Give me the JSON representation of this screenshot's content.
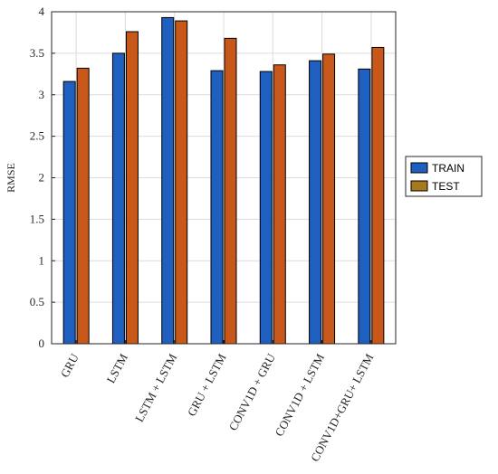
{
  "chart_data": {
    "type": "bar",
    "title": "",
    "xlabel": "",
    "ylabel": "RMSE",
    "ylim": [
      0,
      4
    ],
    "yticks": [
      0,
      0.5,
      1,
      1.5,
      2,
      2.5,
      3,
      3.5,
      4
    ],
    "ytick_labels": [
      "0",
      "0.5",
      "1",
      "1.5",
      "2",
      "2.5",
      "3",
      "3.5",
      "4"
    ],
    "grid": true,
    "legend_position": "outside-right",
    "categories": [
      "GRU",
      "LSTM",
      "LSTM + LSTM",
      "GRU + LSTM",
      "CONV1D + GRU",
      "CONV1D + LSTM",
      "CONV1D+GRU+ LSTM"
    ],
    "series": [
      {
        "name": "TRAIN",
        "color": "#1f5fbf",
        "values": [
          3.16,
          3.5,
          3.93,
          3.29,
          3.28,
          3.41,
          3.31
        ]
      },
      {
        "name": "TEST",
        "color": "#c8581a",
        "values": [
          3.32,
          3.76,
          3.89,
          3.68,
          3.36,
          3.49,
          3.57
        ]
      }
    ],
    "legend_swatch_colors": [
      "#1f5fbf",
      "#a67a1c"
    ]
  }
}
